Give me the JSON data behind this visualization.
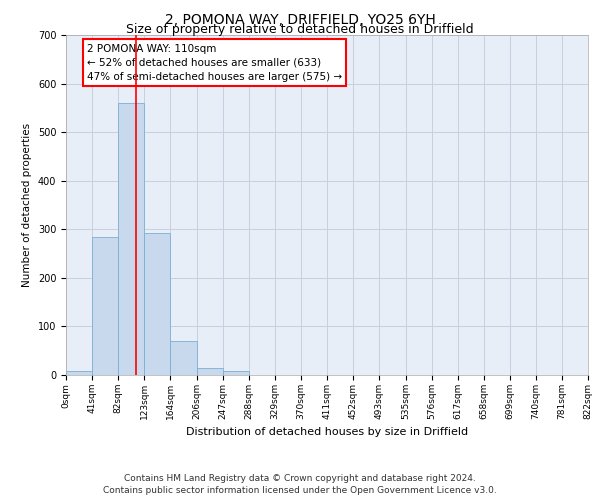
{
  "title_line1": "2, POMONA WAY, DRIFFIELD, YO25 6YH",
  "title_line2": "Size of property relative to detached houses in Driffield",
  "xlabel": "Distribution of detached houses by size in Driffield",
  "ylabel": "Number of detached properties",
  "bin_edges": [
    0,
    41,
    82,
    123,
    164,
    206,
    247,
    288,
    329,
    370,
    411,
    452,
    493,
    535,
    576,
    617,
    658,
    699,
    740,
    781,
    822
  ],
  "bar_heights": [
    8,
    285,
    560,
    293,
    70,
    14,
    9,
    0,
    0,
    0,
    0,
    0,
    0,
    0,
    0,
    0,
    0,
    0,
    0,
    0
  ],
  "bar_color": "#c8d9ee",
  "bar_edge_color": "#7aafd4",
  "bar_edge_width": 0.6,
  "red_line_x": 110,
  "ylim": [
    0,
    700
  ],
  "yticks": [
    0,
    100,
    200,
    300,
    400,
    500,
    600,
    700
  ],
  "annotation_line1": "2 POMONA WAY: 110sqm",
  "annotation_line2": "← 52% of detached houses are smaller (633)",
  "annotation_line3": "47% of semi-detached houses are larger (575) →",
  "footer_line1": "Contains HM Land Registry data © Crown copyright and database right 2024.",
  "footer_line2": "Contains public sector information licensed under the Open Government Licence v3.0.",
  "background_color": "#ffffff",
  "plot_bg_color": "#e8eef8",
  "grid_color": "#c8d0e0",
  "title_fontsize": 10,
  "subtitle_fontsize": 9,
  "annotation_fontsize": 7.5,
  "footer_fontsize": 6.5,
  "xlabel_fontsize": 8,
  "ylabel_fontsize": 7.5,
  "tick_fontsize": 6.5
}
